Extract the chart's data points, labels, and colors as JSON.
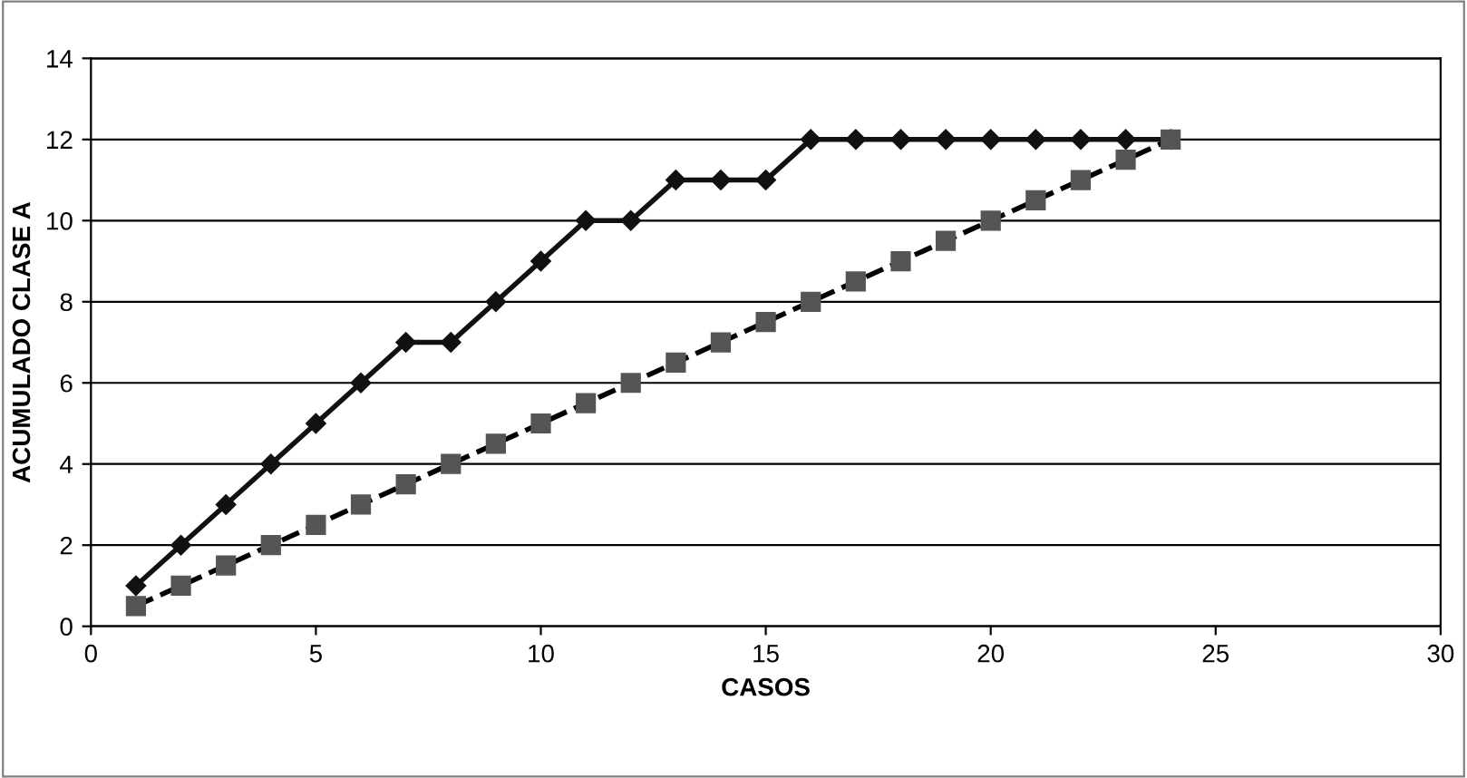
{
  "chart_data": {
    "type": "line",
    "xlabel": "CASOS",
    "ylabel": "ACUMULADO CLASE A",
    "x": [
      1,
      2,
      3,
      4,
      5,
      6,
      7,
      8,
      9,
      10,
      11,
      12,
      13,
      14,
      15,
      16,
      17,
      18,
      19,
      20,
      21,
      22,
      23,
      24
    ],
    "series": [
      {
        "color": "#111111",
        "marker": "diamond",
        "line_style": "solid",
        "values": [
          1,
          2,
          3,
          4,
          5,
          6,
          7,
          7,
          8,
          9,
          10,
          10,
          11,
          11,
          11,
          12,
          12,
          12,
          12,
          12,
          12,
          12,
          12,
          12
        ]
      },
      {
        "color": "#555555",
        "marker": "square",
        "line_style": "dashed",
        "values": [
          0.5,
          1,
          1.5,
          2,
          2.5,
          3,
          3.5,
          4,
          4.5,
          5,
          5.5,
          6,
          6.5,
          7,
          7.5,
          8,
          8.5,
          9,
          9.5,
          10,
          10.5,
          11,
          11.5,
          12
        ]
      }
    ],
    "xlim": [
      0,
      30
    ],
    "xticks": [
      0,
      5,
      10,
      15,
      20,
      25,
      30
    ],
    "ylim": [
      0,
      14
    ],
    "yticks": [
      0,
      2,
      4,
      6,
      8,
      10,
      12,
      14
    ],
    "grid": "y",
    "legend": false
  }
}
